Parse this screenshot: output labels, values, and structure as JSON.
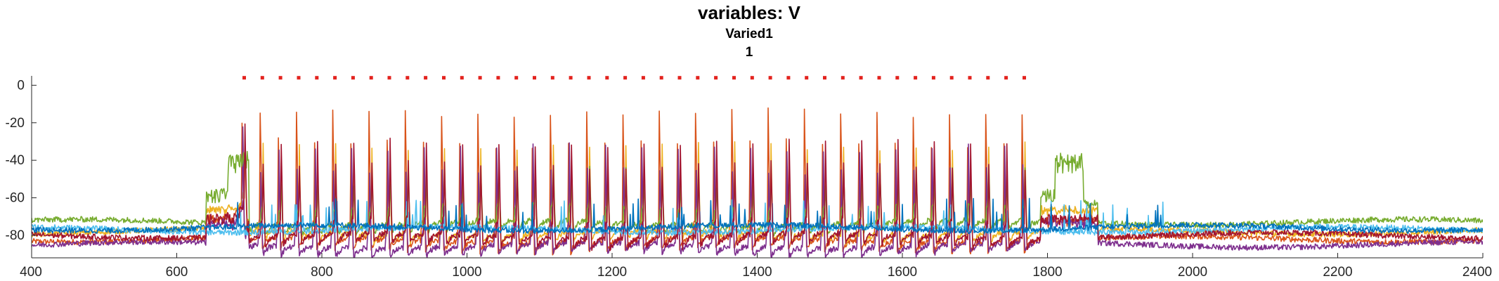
{
  "chart_data": {
    "type": "line",
    "title": "variables: V",
    "subtitle_lines": [
      "Varied1",
      "1"
    ],
    "xlabel": "",
    "ylabel": "",
    "xlim": [
      400,
      2400
    ],
    "ylim": [
      -92,
      5
    ],
    "xticks": [
      400,
      600,
      800,
      1000,
      1200,
      1400,
      1600,
      1800,
      2000,
      2200,
      2400
    ],
    "yticks": [
      0,
      -20,
      -40,
      -60,
      -80
    ],
    "grid": false,
    "legend": "none",
    "stimulus_markers": {
      "color": "#e3231e",
      "y": 4,
      "x_start": 693,
      "x_end": 1780,
      "step": 25
    },
    "series": [
      {
        "color": "#d95319",
        "baseline": -82,
        "spike_peak": -2,
        "style": "spiking"
      },
      {
        "color": "#edb120",
        "baseline": -78,
        "spike_peak": -10,
        "style": "spiking"
      },
      {
        "color": "#7e2f8e",
        "baseline": -85,
        "spike_peak": -5,
        "style": "spiking"
      },
      {
        "color": "#77ac30",
        "baseline": -73,
        "spike_peak": -28,
        "style": "bursting"
      },
      {
        "color": "#4dbeee",
        "baseline": -77,
        "spike_peak": -65,
        "style": "noisy"
      },
      {
        "color": "#a2142f",
        "baseline": -80,
        "spike_peak": -10,
        "style": "spiking"
      },
      {
        "color": "#0072bd",
        "baseline": -76,
        "spike_peak": -68,
        "style": "noisy"
      }
    ]
  }
}
